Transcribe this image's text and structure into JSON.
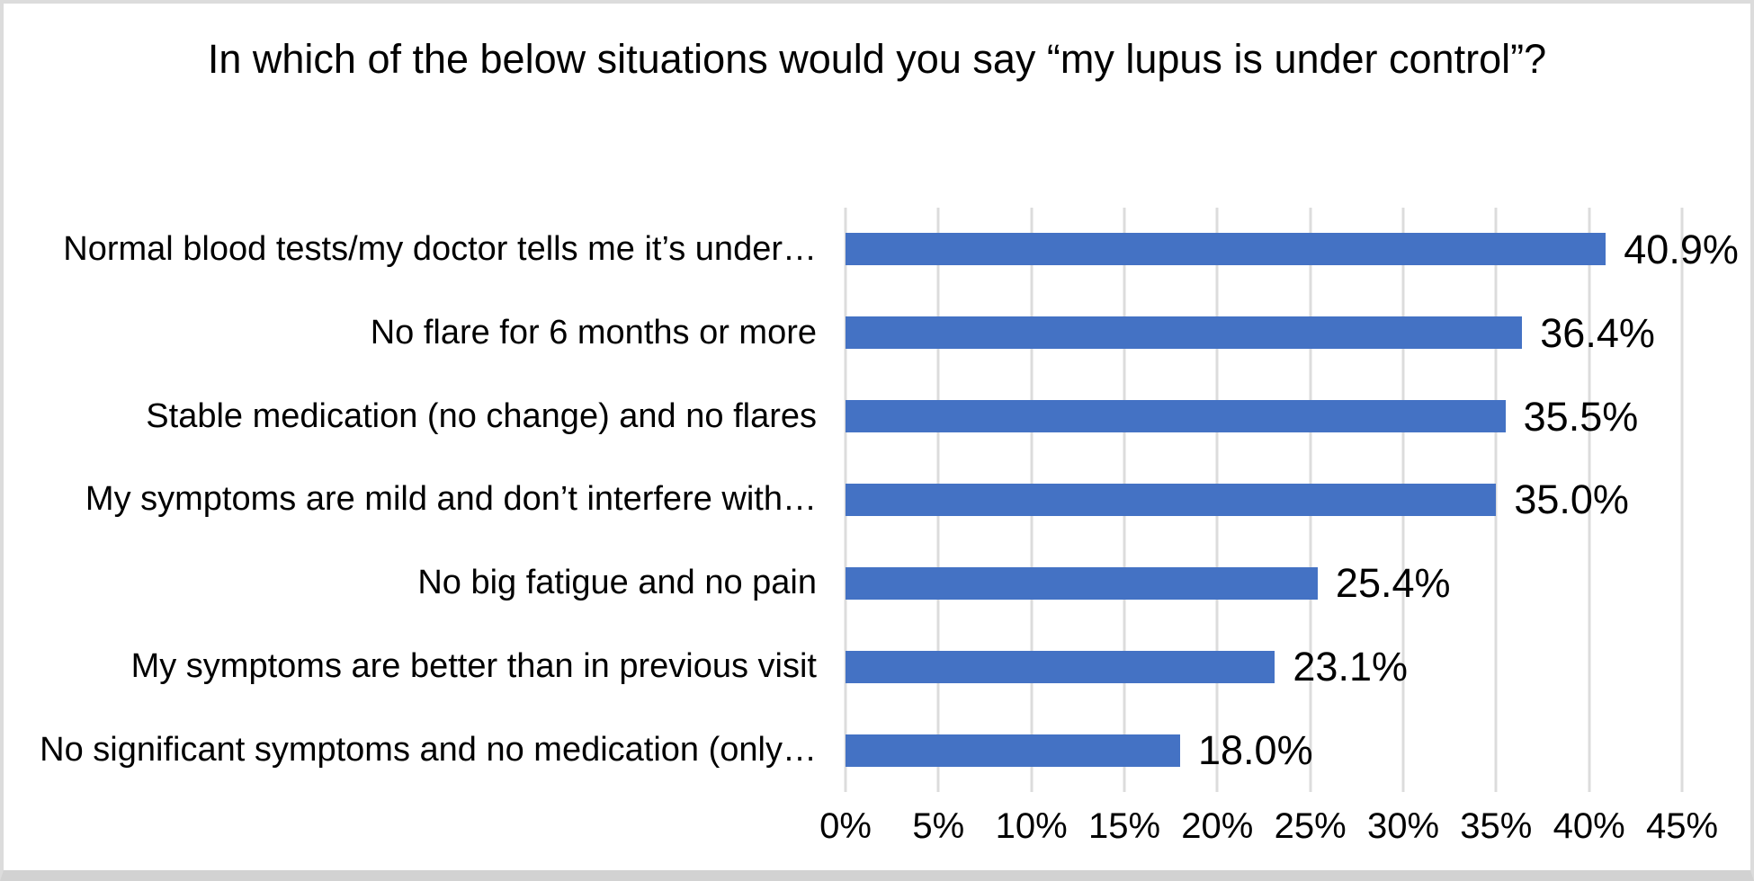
{
  "chart_data": {
    "type": "bar",
    "orientation": "horizontal",
    "title": "In which of the below situations would you say “my lupus is under control”?",
    "categories": [
      "Normal blood tests/my doctor tells me it’s under…",
      "No flare for 6 months or more",
      "Stable medication (no change) and no flares",
      "My symptoms are mild and don’t interfere with…",
      "No big fatigue and no pain",
      "My symptoms are better than in previous visit",
      "No significant symptoms and no medication (only…"
    ],
    "values": [
      40.9,
      36.4,
      35.5,
      35.0,
      25.4,
      23.1,
      18.0
    ],
    "value_labels": [
      "40.9%",
      "36.4%",
      "35.5%",
      "35.0%",
      "25.4%",
      "23.1%",
      "18.0%"
    ],
    "xlabel": "",
    "ylabel": "",
    "xlim": [
      0,
      45
    ],
    "x_ticks": [
      "0%",
      "5%",
      "10%",
      "15%",
      "20%",
      "25%",
      "30%",
      "35%",
      "40%",
      "45%"
    ],
    "grid": "vertical",
    "legend": "none",
    "bar_color": "#4472C4",
    "gridline_color": "#DCDCDC"
  }
}
